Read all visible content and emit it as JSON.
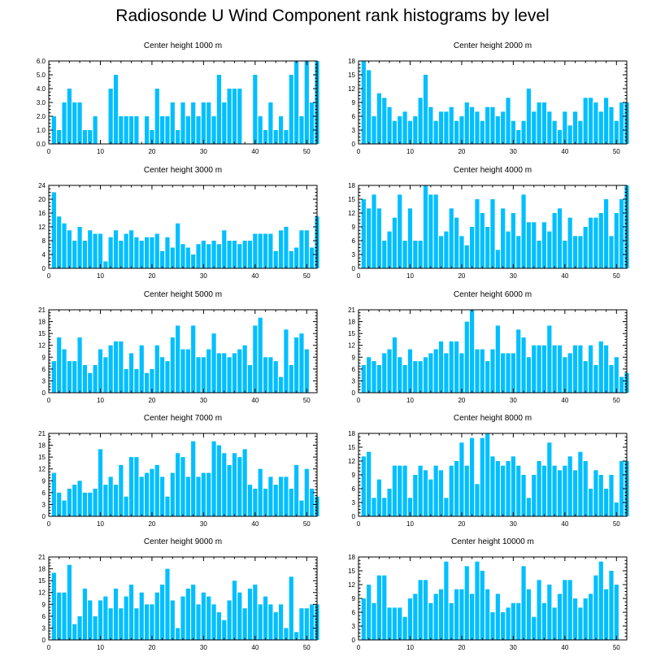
{
  "title": "Radiosonde U Wind Component rank histograms by level",
  "colors": {
    "bar": "#00bfff",
    "axis": "#000000",
    "background": "#ffffff"
  },
  "chart_data": [
    {
      "type": "bar",
      "title": "Center height 1000 m",
      "xlim": [
        0,
        52
      ],
      "ylim": [
        0,
        6
      ],
      "yticks": [
        "0.0",
        "1.0",
        "2.0",
        "3.0",
        "4.0",
        "5.0",
        "6.0"
      ],
      "xticks": [
        "0",
        "10",
        "20",
        "30",
        "40",
        "50"
      ],
      "values": [
        2,
        1,
        3,
        4,
        3,
        3,
        1,
        1,
        2,
        0,
        0,
        4,
        5,
        2,
        2,
        2,
        2,
        0,
        2,
        1,
        4,
        2,
        2,
        3,
        1,
        3,
        2,
        3,
        2,
        3,
        3,
        2,
        5,
        3,
        4,
        4,
        4,
        0,
        0,
        5,
        2,
        1,
        3,
        1,
        2,
        1,
        5,
        6,
        2,
        6,
        3,
        6
      ]
    },
    {
      "type": "bar",
      "title": "Center height 2000 m",
      "xlim": [
        0,
        52
      ],
      "ylim": [
        0,
        18
      ],
      "yticks": [
        "0",
        "3",
        "6",
        "9",
        "12",
        "15",
        "18"
      ],
      "xticks": [
        "0",
        "10",
        "20",
        "30",
        "40",
        "50"
      ],
      "values": [
        18,
        16,
        6,
        11,
        10,
        8,
        5,
        6,
        7,
        5,
        6,
        10,
        15,
        8,
        5,
        7,
        7,
        8,
        5,
        6,
        9,
        8,
        7,
        5,
        8,
        8,
        6,
        7,
        10,
        5,
        3,
        5,
        12,
        7,
        9,
        9,
        7,
        5,
        3,
        7,
        4,
        7,
        5,
        10,
        10,
        9,
        7,
        10,
        8,
        5,
        9,
        9
      ]
    },
    {
      "type": "bar",
      "title": "Center height 3000 m",
      "xlim": [
        0,
        52
      ],
      "ylim": [
        0,
        24
      ],
      "yticks": [
        "0",
        "4",
        "8",
        "12",
        "16",
        "20",
        "24"
      ],
      "xticks": [
        "0",
        "10",
        "20",
        "30",
        "40",
        "50"
      ],
      "values": [
        22,
        15,
        13,
        11,
        8,
        12,
        8,
        11,
        10,
        10,
        2,
        9,
        11,
        8,
        10,
        11,
        9,
        8,
        9,
        9,
        10,
        5,
        9,
        6,
        13,
        7,
        6,
        4,
        7,
        8,
        7,
        8,
        7,
        11,
        8,
        8,
        7,
        8,
        8,
        10,
        10,
        10,
        10,
        5,
        11,
        12,
        5,
        6,
        11,
        11,
        6,
        15
      ]
    },
    {
      "type": "bar",
      "title": "Center height 4000 m",
      "xlim": [
        0,
        52
      ],
      "ylim": [
        0,
        18
      ],
      "yticks": [
        "0",
        "3",
        "6",
        "9",
        "12",
        "15",
        "18"
      ],
      "xticks": [
        "0",
        "10",
        "20",
        "30",
        "40",
        "50"
      ],
      "values": [
        15,
        13,
        16,
        13,
        6,
        8,
        11,
        16,
        6,
        13,
        6,
        6,
        18,
        16,
        16,
        7,
        8,
        13,
        11,
        7,
        5,
        9,
        15,
        12,
        9,
        15,
        4,
        13,
        8,
        12,
        7,
        16,
        10,
        10,
        6,
        10,
        8,
        12,
        13,
        6,
        11,
        7,
        7,
        9,
        11,
        11,
        12,
        15,
        7,
        12,
        15,
        18
      ]
    },
    {
      "type": "bar",
      "title": "Center height 5000 m",
      "xlim": [
        0,
        52
      ],
      "ylim": [
        0,
        21
      ],
      "yticks": [
        "0",
        "3",
        "6",
        "9",
        "12",
        "15",
        "18",
        "21"
      ],
      "xticks": [
        "0",
        "10",
        "20",
        "30",
        "40",
        "50"
      ],
      "values": [
        8,
        14,
        11,
        8,
        8,
        14,
        7,
        5,
        7,
        11,
        9,
        12,
        13,
        13,
        6,
        10,
        6,
        12,
        5,
        6,
        12,
        9,
        8,
        14,
        17,
        11,
        11,
        17,
        9,
        9,
        11,
        15,
        10,
        10,
        9,
        10,
        11,
        12,
        7,
        17,
        19,
        9,
        9,
        8,
        4,
        16,
        7,
        14,
        15,
        11,
        0,
        0
      ]
    },
    {
      "type": "bar",
      "title": "Center height 6000 m",
      "xlim": [
        0,
        52
      ],
      "ylim": [
        0,
        21
      ],
      "yticks": [
        "0",
        "3",
        "6",
        "9",
        "12",
        "15",
        "18",
        "21"
      ],
      "xticks": [
        "0",
        "10",
        "20",
        "30",
        "40",
        "50"
      ],
      "values": [
        7,
        9,
        8,
        7,
        10,
        11,
        14,
        9,
        7,
        11,
        8,
        8,
        9,
        10,
        11,
        13,
        10,
        13,
        13,
        10,
        18,
        21,
        11,
        11,
        8,
        11,
        17,
        10,
        10,
        10,
        16,
        14,
        9,
        12,
        12,
        12,
        17,
        12,
        12,
        9,
        10,
        12,
        12,
        8,
        12,
        7,
        13,
        12,
        7,
        9,
        4,
        5
      ]
    },
    {
      "type": "bar",
      "title": "Center height 7000 m",
      "xlim": [
        0,
        52
      ],
      "ylim": [
        0,
        21
      ],
      "yticks": [
        "0",
        "3",
        "6",
        "9",
        "12",
        "15",
        "18",
        "21"
      ],
      "xticks": [
        "0",
        "10",
        "20",
        "30",
        "40",
        "50"
      ],
      "values": [
        11,
        6,
        4,
        7,
        8,
        9,
        6,
        6,
        7,
        17,
        8,
        10,
        8,
        13,
        5,
        15,
        15,
        10,
        11,
        12,
        13,
        10,
        5,
        11,
        16,
        15,
        10,
        19,
        10,
        11,
        11,
        19,
        18,
        16,
        13,
        16,
        15,
        17,
        8,
        7,
        12,
        7,
        10,
        8,
        10,
        10,
        7,
        13,
        4,
        12,
        7,
        5
      ]
    },
    {
      "type": "bar",
      "title": "Center height 8000 m",
      "xlim": [
        0,
        52
      ],
      "ylim": [
        0,
        18
      ],
      "yticks": [
        "0",
        "3",
        "6",
        "9",
        "12",
        "15",
        "18"
      ],
      "xticks": [
        "0",
        "10",
        "20",
        "30",
        "40",
        "50"
      ],
      "values": [
        13,
        14,
        4,
        8,
        4,
        6,
        11,
        11,
        11,
        4,
        9,
        11,
        10,
        8,
        11,
        10,
        4,
        11,
        12,
        16,
        11,
        17,
        7,
        17,
        18,
        13,
        12,
        11,
        12,
        13,
        11,
        9,
        4,
        9,
        12,
        11,
        16,
        11,
        10,
        11,
        13,
        10,
        14,
        12,
        6,
        10,
        9,
        6,
        9,
        3,
        12,
        12
      ]
    },
    {
      "type": "bar",
      "title": "Center height 9000 m",
      "xlim": [
        0,
        52
      ],
      "ylim": [
        0,
        21
      ],
      "yticks": [
        "0",
        "3",
        "6",
        "9",
        "12",
        "15",
        "18",
        "21"
      ],
      "xticks": [
        "0",
        "10",
        "20",
        "30",
        "40",
        "50"
      ],
      "values": [
        17,
        12,
        12,
        19,
        4,
        6,
        13,
        10,
        6,
        10,
        11,
        8,
        13,
        8,
        11,
        14,
        8,
        12,
        9,
        9,
        12,
        14,
        18,
        10,
        3,
        11,
        13,
        14,
        9,
        12,
        11,
        9,
        7,
        5,
        10,
        15,
        12,
        8,
        13,
        14,
        9,
        11,
        9,
        7,
        9,
        3,
        16,
        2,
        8,
        8,
        9,
        9
      ]
    },
    {
      "type": "bar",
      "title": "Center height 10000 m",
      "xlim": [
        0,
        52
      ],
      "ylim": [
        0,
        18
      ],
      "yticks": [
        "0",
        "3",
        "6",
        "9",
        "12",
        "15",
        "18"
      ],
      "xticks": [
        "0",
        "10",
        "20",
        "30",
        "40",
        "50"
      ],
      "values": [
        9,
        12,
        8,
        14,
        14,
        7,
        7,
        7,
        5,
        9,
        10,
        13,
        13,
        8,
        10,
        11,
        17,
        8,
        11,
        11,
        16,
        10,
        17,
        15,
        11,
        6,
        10,
        6,
        7,
        8,
        8,
        16,
        11,
        5,
        13,
        8,
        12,
        7,
        10,
        13,
        13,
        9,
        7,
        9,
        10,
        14,
        17,
        11,
        15,
        12,
        0,
        0
      ]
    }
  ]
}
